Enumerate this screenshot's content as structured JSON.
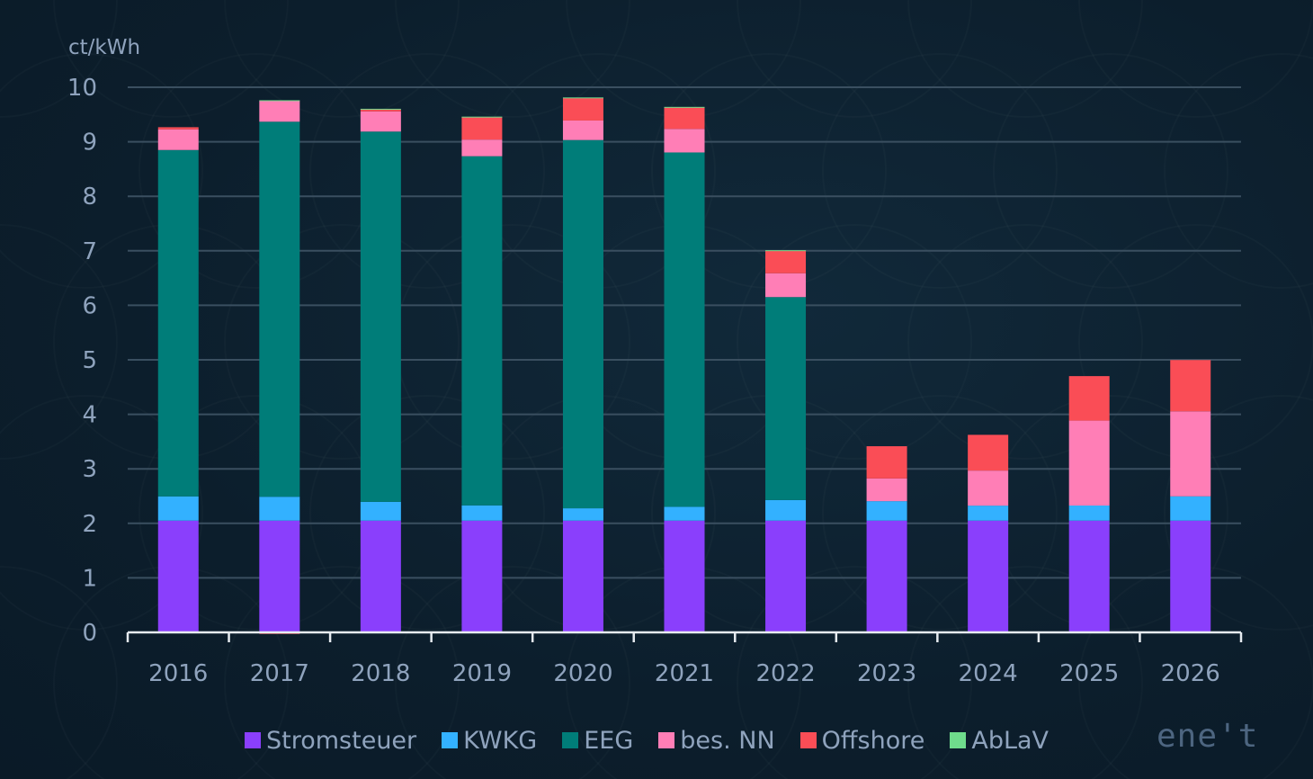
{
  "chart_data": {
    "type": "bar",
    "stacked": true,
    "title": "",
    "ylabel": "ct/kWh",
    "xlabel": "",
    "ylim": [
      0,
      10
    ],
    "yticks": [
      0,
      1,
      2,
      3,
      4,
      5,
      6,
      7,
      8,
      9,
      10
    ],
    "grid": true,
    "legend_position": "bottom",
    "categories": [
      "2016",
      "2017",
      "2018",
      "2019",
      "2020",
      "2021",
      "2022",
      "2023",
      "2024",
      "2025",
      "2026"
    ],
    "series": [
      {
        "name": "Stromsteuer",
        "color": "#8a3ffc",
        "values": [
          2.05,
          2.05,
          2.05,
          2.05,
          2.05,
          2.05,
          2.05,
          2.05,
          2.05,
          2.05,
          2.05
        ]
      },
      {
        "name": "KWKG",
        "color": "#33b1ff",
        "values": [
          0.445,
          0.438,
          0.345,
          0.28,
          0.226,
          0.254,
          0.378,
          0.357,
          0.275,
          0.277,
          0.446
        ]
      },
      {
        "name": "EEG",
        "color": "#007d79",
        "values": [
          6.354,
          6.88,
          6.792,
          6.405,
          6.756,
          6.5,
          3.723,
          0,
          0,
          0,
          0
        ]
      },
      {
        "name": "bes. NN",
        "color": "#ff7eb6",
        "values": [
          0.378,
          0.388,
          0.37,
          0.305,
          0.358,
          0.432,
          0.437,
          0.417,
          0.643,
          1.558,
          1.559
        ]
      },
      {
        "name": "Offshore",
        "color": "#fa4d56",
        "values": [
          0.04,
          -0.028,
          0.037,
          0.416,
          0.416,
          0.395,
          0.419,
          0.591,
          0.656,
          0.816,
          0.941
        ]
      },
      {
        "name": "AbLaV",
        "color": "#6fdc8c",
        "values": [
          0,
          0.006,
          0.011,
          0.005,
          0.007,
          0.009,
          0.003,
          0,
          0,
          0,
          0
        ]
      }
    ]
  },
  "logo": {
    "text": "ene't"
  }
}
